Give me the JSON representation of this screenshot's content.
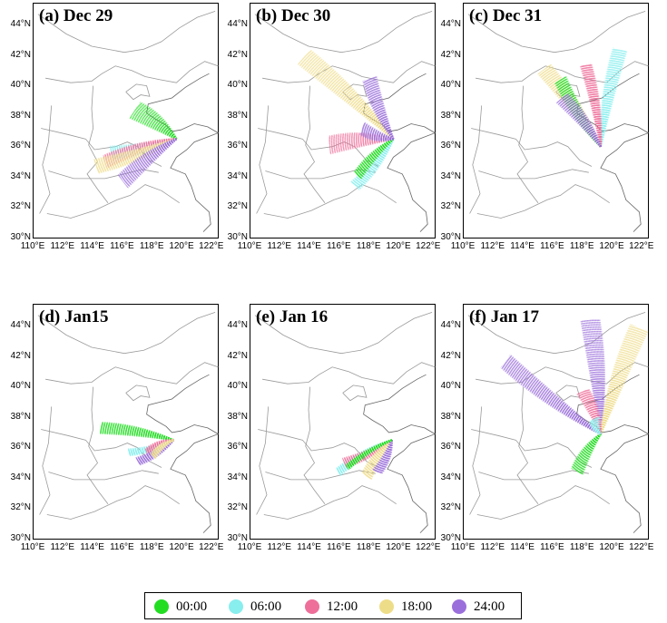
{
  "figure": {
    "latitude_labels": [
      "44°N",
      "42°N",
      "40°N",
      "38°N",
      "36°N",
      "34°N",
      "32°N",
      "30°N"
    ],
    "longitude_labels": [
      "110°E",
      "112°E",
      "114°E",
      "116°E",
      "118°E",
      "120°E",
      "122°E"
    ],
    "lat_range": [
      30,
      45.5
    ],
    "lon_range": [
      110,
      122.5
    ],
    "panels": [
      {
        "title": "(a) Dec 29"
      },
      {
        "title": "(b) Dec 30"
      },
      {
        "title": "(c) Dec 31"
      },
      {
        "title": "(d) Jan15"
      },
      {
        "title": "(e) Jan 16"
      },
      {
        "title": "(f) Jan 17"
      }
    ],
    "legend": [
      {
        "label": "00:00",
        "color": "#22dd22"
      },
      {
        "label": "06:00",
        "color": "#88eeee"
      },
      {
        "label": "12:00",
        "color": "#ee6f9a"
      },
      {
        "label": "18:00",
        "color": "#eedd88"
      },
      {
        "label": "24:00",
        "color": "#9b6fdb"
      }
    ]
  }
}
